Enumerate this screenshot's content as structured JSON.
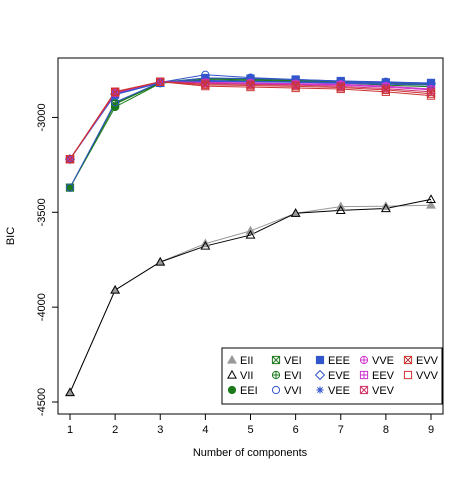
{
  "chart_data": {
    "type": "line",
    "title": "",
    "xlabel": "Number of components",
    "ylabel": "BIC",
    "x": [
      1,
      2,
      3,
      4,
      5,
      6,
      7,
      8,
      9
    ],
    "xlim": [
      1,
      9
    ],
    "ylim": [
      -4500,
      -2750
    ],
    "yticks": [
      -4500,
      -4000,
      -3500,
      -3000
    ],
    "grid": false,
    "legend_position": "bottom-right",
    "legend_columns": [
      [
        "EII",
        "VII",
        "EEI"
      ],
      [
        "VEI",
        "EVI",
        "VVI"
      ],
      [
        "EEE",
        "EVE",
        "VEE"
      ],
      [
        "VVE",
        "EEV",
        "VEV"
      ],
      [
        "EVV",
        "VVV"
      ]
    ],
    "series": [
      {
        "name": "EII",
        "color": "#999999",
        "marker": "triangle-filled",
        "values": [
          -4450,
          -3910,
          -3762,
          -3665,
          -3598,
          -3505,
          -3470,
          -3468,
          -3462
        ]
      },
      {
        "name": "VII",
        "color": "#000000",
        "marker": "triangle-open",
        "values": [
          -4450,
          -3910,
          -3762,
          -3678,
          -3620,
          -3505,
          -3490,
          -3480,
          -3432
        ]
      },
      {
        "name": "EEI",
        "color": "#1b7a1b",
        "marker": "circle-filled",
        "values": [
          -3370,
          -2945,
          -2820,
          -2800,
          -2805,
          -2812,
          -2818,
          -2830,
          -2838
        ]
      },
      {
        "name": "VEI",
        "color": "#1b7a1b",
        "marker": "square-x",
        "values": [
          -3370,
          -2930,
          -2818,
          -2795,
          -2800,
          -2808,
          -2815,
          -2820,
          -2830
        ]
      },
      {
        "name": "EVI",
        "color": "#1b7a1b",
        "marker": "circle-plus",
        "values": [
          -3370,
          -2925,
          -2815,
          -2792,
          -2798,
          -2805,
          -2812,
          -2818,
          -2825
        ]
      },
      {
        "name": "VVI",
        "color": "#3355cc",
        "marker": "circle-open",
        "values": [
          -3370,
          -2920,
          -2815,
          -2775,
          -2790,
          -2800,
          -2808,
          -2812,
          -2820
        ]
      },
      {
        "name": "EEE",
        "color": "#3355cc",
        "marker": "square-filled",
        "values": [
          -3220,
          -2880,
          -2818,
          -2792,
          -2795,
          -2800,
          -2808,
          -2815,
          -2818
        ]
      },
      {
        "name": "EVE",
        "color": "#3355cc",
        "marker": "diamond-open",
        "values": [
          -3220,
          -2878,
          -2816,
          -2805,
          -2810,
          -2812,
          -2815,
          -2818,
          -2822
        ]
      },
      {
        "name": "VEE",
        "color": "#3355cc",
        "marker": "asterisk",
        "values": [
          -3220,
          -2876,
          -2814,
          -2810,
          -2812,
          -2815,
          -2820,
          -2825,
          -2830
        ]
      },
      {
        "name": "VVE",
        "color": "#cc33cc",
        "marker": "circle-plus",
        "values": [
          -3220,
          -2872,
          -2812,
          -2815,
          -2818,
          -2822,
          -2825,
          -2835,
          -2850
        ]
      },
      {
        "name": "EEV",
        "color": "#cc33cc",
        "marker": "square-plus",
        "values": [
          -3220,
          -2870,
          -2812,
          -2818,
          -2822,
          -2826,
          -2830,
          -2840,
          -2855
        ]
      },
      {
        "name": "VEV",
        "color": "#cc3366",
        "marker": "square-x",
        "values": [
          -3220,
          -2868,
          -2812,
          -2822,
          -2826,
          -2830,
          -2836,
          -2848,
          -2865
        ]
      },
      {
        "name": "EVV",
        "color": "#cc3333",
        "marker": "square-x",
        "values": [
          -3220,
          -2866,
          -2812,
          -2828,
          -2832,
          -2836,
          -2842,
          -2855,
          -2875
        ]
      },
      {
        "name": "VVV",
        "color": "#cc3333",
        "marker": "square-open",
        "values": [
          -3220,
          -2864,
          -2812,
          -2835,
          -2840,
          -2845,
          -2850,
          -2865,
          -2885
        ]
      }
    ]
  }
}
